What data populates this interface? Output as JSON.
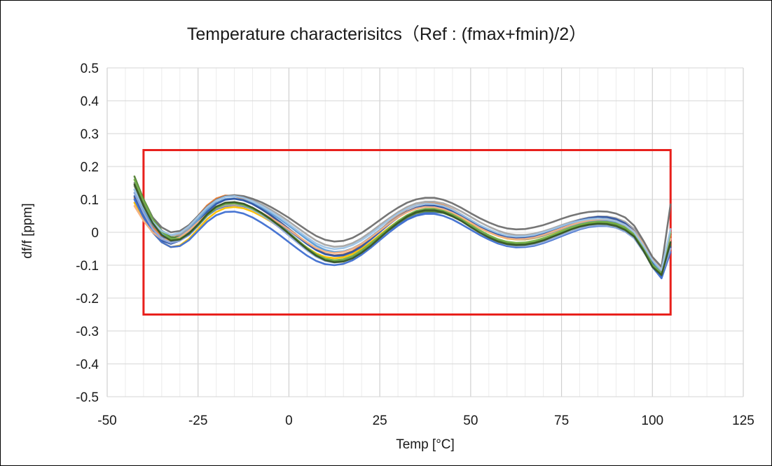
{
  "chart_data": {
    "type": "line",
    "title": "Temperature characterisitcs（Ref : (fmax+fmin)/2）",
    "xlabel": "Temp [°C]",
    "ylabel": "df/f [ppm]",
    "xlim": [
      -50,
      125
    ],
    "ylim": [
      -0.5,
      0.5
    ],
    "x_ticks": [
      -50,
      -25,
      0,
      25,
      50,
      75,
      100,
      125
    ],
    "y_ticks": [
      -0.5,
      -0.4,
      -0.3,
      -0.2,
      -0.1,
      0,
      0.1,
      0.2,
      0.3,
      0.4,
      0.5
    ],
    "x_tick_labels": [
      "-50",
      "-25",
      "0",
      "25",
      "50",
      "75",
      "100",
      "125"
    ],
    "y_tick_labels": [
      "-0.5",
      "-0.4",
      "-0.3",
      "-0.2",
      "-0.1",
      "0",
      "0.1",
      "0.2",
      "0.3",
      "0.4",
      "0.5"
    ],
    "grid": true,
    "minor_x_grid_step": 5,
    "legend": "none",
    "limit_box": {
      "x": [
        -40,
        105
      ],
      "y": [
        -0.25,
        0.25
      ],
      "color": "#e8201c"
    },
    "x": [
      -42.5,
      -40,
      -37.5,
      -35,
      -32.5,
      -30,
      -27.5,
      -25,
      -22.5,
      -20,
      -17.5,
      -15,
      -12.5,
      -10,
      -7.5,
      -5,
      -2.5,
      0,
      2.5,
      5,
      7.5,
      10,
      12.5,
      15,
      17.5,
      20,
      22.5,
      25,
      27.5,
      30,
      32.5,
      35,
      37.5,
      40,
      42.5,
      45,
      47.5,
      50,
      52.5,
      55,
      57.5,
      60,
      62.5,
      65,
      67.5,
      70,
      72.5,
      75,
      77.5,
      80,
      82.5,
      85,
      87.5,
      90,
      92.5,
      95,
      97.5,
      100,
      102.5,
      105
    ],
    "series": [
      {
        "color": "#4472c4",
        "values": [
          0.12,
          0.065,
          0.02,
          -0.012,
          -0.028,
          -0.025,
          -0.008,
          0.02,
          0.05,
          0.07,
          0.08,
          0.083,
          0.079,
          0.07,
          0.057,
          0.043,
          0.026,
          0.006,
          -0.015,
          -0.036,
          -0.054,
          -0.067,
          -0.072,
          -0.071,
          -0.063,
          -0.049,
          -0.031,
          -0.013,
          0.006,
          0.024,
          0.04,
          0.052,
          0.059,
          0.061,
          0.059,
          0.051,
          0.04,
          0.027,
          0.014,
          0.003,
          -0.007,
          -0.014,
          -0.016,
          -0.015,
          -0.011,
          -0.004,
          0.005,
          0.014,
          0.023,
          0.03,
          0.034,
          0.036,
          0.034,
          0.03,
          0.02,
          0.0,
          -0.04,
          -0.09,
          -0.13,
          -0.03
        ]
      },
      {
        "color": "#ed7d31",
        "values": [
          0.105,
          0.055,
          0.015,
          -0.01,
          -0.02,
          -0.008,
          0.018,
          0.05,
          0.082,
          0.103,
          0.112,
          0.11,
          0.101,
          0.087,
          0.07,
          0.051,
          0.031,
          0.01,
          -0.011,
          -0.033,
          -0.052,
          -0.065,
          -0.07,
          -0.067,
          -0.057,
          -0.04,
          -0.018,
          0.006,
          0.03,
          0.052,
          0.07,
          0.082,
          0.088,
          0.088,
          0.082,
          0.07,
          0.054,
          0.036,
          0.019,
          0.004,
          -0.008,
          -0.017,
          -0.021,
          -0.021,
          -0.017,
          -0.009,
          0.0,
          0.01,
          0.02,
          0.028,
          0.035,
          0.039,
          0.04,
          0.036,
          0.025,
          0.005,
          -0.035,
          -0.08,
          -0.12,
          -0.01
        ]
      },
      {
        "color": "#a5a5a5",
        "values": [
          0.14,
          0.08,
          0.035,
          0.005,
          -0.01,
          -0.005,
          0.015,
          0.045,
          0.075,
          0.097,
          0.108,
          0.11,
          0.106,
          0.097,
          0.084,
          0.069,
          0.052,
          0.033,
          0.013,
          -0.007,
          -0.025,
          -0.038,
          -0.044,
          -0.042,
          -0.033,
          -0.018,
          0.001,
          0.022,
          0.042,
          0.061,
          0.077,
          0.088,
          0.093,
          0.093,
          0.088,
          0.077,
          0.063,
          0.047,
          0.031,
          0.017,
          0.005,
          -0.004,
          -0.008,
          -0.008,
          -0.004,
          0.003,
          0.012,
          0.022,
          0.031,
          0.039,
          0.045,
          0.048,
          0.048,
          0.043,
          0.032,
          0.01,
          -0.03,
          -0.08,
          -0.115,
          0.0
        ]
      },
      {
        "color": "#ffc000",
        "values": [
          0.09,
          0.04,
          0.0,
          -0.03,
          -0.045,
          -0.04,
          -0.02,
          0.01,
          0.04,
          0.062,
          0.074,
          0.077,
          0.073,
          0.063,
          0.049,
          0.033,
          0.015,
          -0.006,
          -0.027,
          -0.047,
          -0.064,
          -0.075,
          -0.079,
          -0.076,
          -0.066,
          -0.05,
          -0.03,
          -0.008,
          0.014,
          0.034,
          0.051,
          0.063,
          0.069,
          0.07,
          0.066,
          0.056,
          0.043,
          0.028,
          0.013,
          0.0,
          -0.011,
          -0.019,
          -0.022,
          -0.022,
          -0.018,
          -0.011,
          -0.002,
          0.008,
          0.017,
          0.025,
          0.03,
          0.032,
          0.031,
          0.026,
          0.015,
          -0.005,
          -0.045,
          -0.095,
          -0.135,
          -0.05
        ]
      },
      {
        "color": "#5b9bd5",
        "values": [
          0.13,
          0.07,
          0.025,
          -0.005,
          -0.018,
          -0.012,
          0.008,
          0.038,
          0.068,
          0.09,
          0.101,
          0.103,
          0.098,
          0.088,
          0.074,
          0.058,
          0.04,
          0.02,
          -0.001,
          -0.022,
          -0.041,
          -0.054,
          -0.06,
          -0.058,
          -0.049,
          -0.034,
          -0.014,
          0.007,
          0.028,
          0.047,
          0.063,
          0.074,
          0.08,
          0.08,
          0.075,
          0.064,
          0.05,
          0.034,
          0.018,
          0.004,
          -0.008,
          -0.017,
          -0.021,
          -0.021,
          -0.017,
          -0.01,
          0.0,
          0.01,
          0.02,
          0.028,
          0.034,
          0.037,
          0.037,
          0.032,
          0.021,
          0.0,
          -0.04,
          -0.09,
          -0.125,
          -0.02
        ]
      },
      {
        "color": "#548235",
        "values": [
          0.17,
          0.1,
          0.045,
          0.005,
          -0.015,
          -0.015,
          0.0,
          0.025,
          0.055,
          0.076,
          0.087,
          0.089,
          0.084,
          0.073,
          0.058,
          0.04,
          0.02,
          -0.002,
          -0.025,
          -0.048,
          -0.068,
          -0.082,
          -0.088,
          -0.086,
          -0.076,
          -0.06,
          -0.039,
          -0.016,
          0.007,
          0.028,
          0.046,
          0.058,
          0.064,
          0.064,
          0.059,
          0.048,
          0.034,
          0.018,
          0.002,
          -0.012,
          -0.024,
          -0.032,
          -0.036,
          -0.035,
          -0.031,
          -0.023,
          -0.013,
          -0.002,
          0.009,
          0.018,
          0.025,
          0.028,
          0.028,
          0.023,
          0.012,
          -0.008,
          -0.05,
          -0.1,
          -0.13,
          -0.04
        ]
      },
      {
        "color": "#2f55a4",
        "values": [
          0.11,
          0.05,
          0.005,
          -0.025,
          -0.035,
          -0.025,
          -0.002,
          0.03,
          0.062,
          0.086,
          0.099,
          0.102,
          0.097,
          0.086,
          0.07,
          0.052,
          0.032,
          0.01,
          -0.012,
          -0.034,
          -0.053,
          -0.066,
          -0.071,
          -0.069,
          -0.059,
          -0.043,
          -0.022,
          0.001,
          0.024,
          0.045,
          0.063,
          0.075,
          0.081,
          0.081,
          0.076,
          0.065,
          0.051,
          0.035,
          0.019,
          0.005,
          -0.007,
          -0.015,
          -0.018,
          -0.017,
          -0.012,
          -0.004,
          0.006,
          0.017,
          0.028,
          0.037,
          0.043,
          0.047,
          0.046,
          0.04,
          0.027,
          0.003,
          -0.04,
          -0.095,
          -0.135,
          -0.045
        ]
      },
      {
        "color": "#3f6fd1",
        "values": [
          0.1,
          0.045,
          0.0,
          -0.03,
          -0.045,
          -0.042,
          -0.024,
          0.004,
          0.032,
          0.052,
          0.062,
          0.063,
          0.057,
          0.045,
          0.029,
          0.011,
          -0.009,
          -0.03,
          -0.051,
          -0.071,
          -0.087,
          -0.097,
          -0.1,
          -0.096,
          -0.085,
          -0.068,
          -0.047,
          -0.024,
          -0.001,
          0.02,
          0.038,
          0.05,
          0.056,
          0.056,
          0.05,
          0.039,
          0.024,
          0.008,
          -0.008,
          -0.022,
          -0.034,
          -0.042,
          -0.046,
          -0.045,
          -0.041,
          -0.033,
          -0.023,
          -0.012,
          -0.001,
          0.009,
          0.016,
          0.019,
          0.019,
          0.014,
          0.003,
          -0.015,
          -0.055,
          -0.105,
          -0.14,
          -0.06
        ]
      },
      {
        "color": "#f4b183",
        "values": [
          0.08,
          0.035,
          0.0,
          -0.02,
          -0.025,
          -0.015,
          0.005,
          0.03,
          0.055,
          0.073,
          0.083,
          0.085,
          0.081,
          0.072,
          0.059,
          0.044,
          0.027,
          0.008,
          -0.012,
          -0.031,
          -0.048,
          -0.059,
          -0.063,
          -0.06,
          -0.05,
          -0.035,
          -0.016,
          0.005,
          0.026,
          0.045,
          0.061,
          0.072,
          0.077,
          0.076,
          0.07,
          0.059,
          0.045,
          0.029,
          0.013,
          0.0,
          -0.011,
          -0.018,
          -0.021,
          -0.02,
          -0.016,
          -0.008,
          0.002,
          0.012,
          0.022,
          0.03,
          0.036,
          0.039,
          0.039,
          0.034,
          0.022,
          0.002,
          -0.035,
          -0.08,
          -0.11,
          -0.02
        ]
      },
      {
        "color": "#8faadc",
        "values": [
          0.12,
          0.06,
          0.01,
          -0.02,
          -0.032,
          -0.025,
          -0.005,
          0.024,
          0.053,
          0.074,
          0.085,
          0.087,
          0.081,
          0.069,
          0.053,
          0.034,
          0.013,
          -0.01,
          -0.033,
          -0.055,
          -0.074,
          -0.087,
          -0.092,
          -0.089,
          -0.078,
          -0.061,
          -0.039,
          -0.015,
          0.009,
          0.031,
          0.05,
          0.063,
          0.069,
          0.069,
          0.063,
          0.051,
          0.035,
          0.017,
          0.0,
          -0.016,
          -0.029,
          -0.038,
          -0.042,
          -0.042,
          -0.038,
          -0.03,
          -0.02,
          -0.009,
          0.002,
          0.011,
          0.018,
          0.021,
          0.02,
          0.014,
          0.002,
          -0.018,
          -0.058,
          -0.1,
          -0.13,
          -0.05
        ]
      },
      {
        "color": "#6f6f6f",
        "values": [
          0.15,
          0.09,
          0.045,
          0.015,
          0.0,
          0.004,
          0.022,
          0.05,
          0.078,
          0.099,
          0.11,
          0.113,
          0.11,
          0.102,
          0.091,
          0.077,
          0.061,
          0.044,
          0.025,
          0.006,
          -0.011,
          -0.023,
          -0.028,
          -0.026,
          -0.017,
          -0.002,
          0.017,
          0.037,
          0.057,
          0.075,
          0.09,
          0.1,
          0.105,
          0.105,
          0.099,
          0.088,
          0.074,
          0.058,
          0.043,
          0.03,
          0.019,
          0.012,
          0.009,
          0.01,
          0.015,
          0.022,
          0.031,
          0.041,
          0.05,
          0.057,
          0.062,
          0.064,
          0.063,
          0.057,
          0.045,
          0.02,
          -0.025,
          -0.075,
          -0.105,
          0.085
        ]
      },
      {
        "color": "#70ad47",
        "values": [
          0.16,
          0.095,
          0.04,
          0.002,
          -0.02,
          -0.02,
          -0.004,
          0.022,
          0.052,
          0.074,
          0.086,
          0.088,
          0.083,
          0.072,
          0.057,
          0.039,
          0.019,
          -0.003,
          -0.026,
          -0.048,
          -0.067,
          -0.08,
          -0.085,
          -0.082,
          -0.072,
          -0.055,
          -0.034,
          -0.011,
          0.012,
          0.034,
          0.052,
          0.065,
          0.071,
          0.071,
          0.065,
          0.054,
          0.039,
          0.022,
          0.006,
          -0.009,
          -0.021,
          -0.029,
          -0.032,
          -0.031,
          -0.026,
          -0.018,
          -0.008,
          0.003,
          0.014,
          0.023,
          0.029,
          0.032,
          0.031,
          0.026,
          0.014,
          -0.007,
          -0.048,
          -0.098,
          -0.125,
          0.0
        ]
      },
      {
        "color": "#9dc3e6",
        "values": [
          0.13,
          0.075,
          0.032,
          0.004,
          -0.008,
          -0.002,
          0.018,
          0.047,
          0.076,
          0.097,
          0.108,
          0.11,
          0.105,
          0.094,
          0.08,
          0.063,
          0.045,
          0.025,
          0.004,
          -0.016,
          -0.034,
          -0.046,
          -0.051,
          -0.048,
          -0.039,
          -0.024,
          -0.005,
          0.016,
          0.037,
          0.056,
          0.071,
          0.082,
          0.087,
          0.086,
          0.08,
          0.069,
          0.054,
          0.038,
          0.022,
          0.009,
          -0.002,
          -0.01,
          -0.013,
          -0.012,
          -0.008,
          0.0,
          0.009,
          0.019,
          0.028,
          0.035,
          0.04,
          0.042,
          0.04,
          0.034,
          0.022,
          0.0,
          -0.04,
          -0.085,
          -0.115,
          0.01
        ]
      },
      {
        "color": "#375623",
        "values": [
          0.145,
          0.08,
          0.028,
          -0.008,
          -0.025,
          -0.022,
          -0.004,
          0.024,
          0.055,
          0.078,
          0.09,
          0.092,
          0.087,
          0.075,
          0.059,
          0.04,
          0.019,
          -0.004,
          -0.028,
          -0.051,
          -0.071,
          -0.085,
          -0.091,
          -0.089,
          -0.079,
          -0.062,
          -0.041,
          -0.017,
          0.007,
          0.029,
          0.048,
          0.061,
          0.067,
          0.067,
          0.061,
          0.049,
          0.034,
          0.016,
          -0.001,
          -0.016,
          -0.028,
          -0.036,
          -0.039,
          -0.038,
          -0.033,
          -0.025,
          -0.014,
          -0.003,
          0.008,
          0.017,
          0.023,
          0.026,
          0.025,
          0.019,
          0.007,
          -0.013,
          -0.055,
          -0.105,
          -0.13,
          -0.03
        ]
      }
    ]
  }
}
